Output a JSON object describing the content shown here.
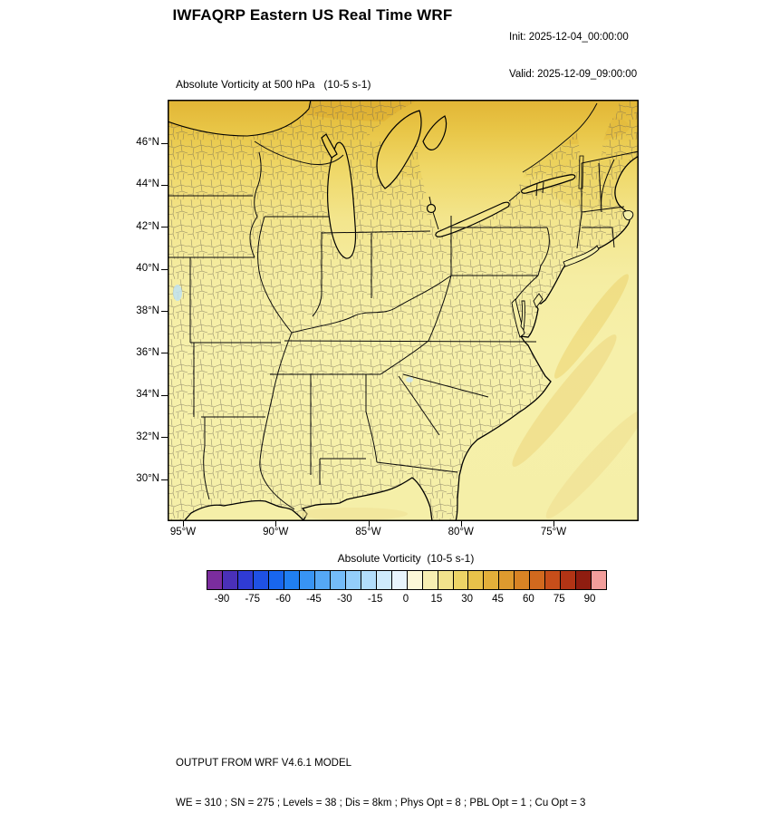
{
  "header": {
    "title": "IWFAQRP Eastern US Real Time WRF",
    "init": "Init: 2025-12-04_00:00:00",
    "valid": "Valid: 2025-12-09_09:00:00"
  },
  "plot": {
    "subtitle": "Absolute Vorticity at 500 hPa   (10-5 s-1)",
    "y_ticks": [
      "46°N",
      "44°N",
      "42°N",
      "40°N",
      "38°N",
      "36°N",
      "34°N",
      "32°N",
      "30°N"
    ],
    "x_ticks": [
      "95°W",
      "90°W",
      "85°W",
      "80°W",
      "75°W"
    ]
  },
  "colorbar": {
    "label": "Absolute Vorticity  (10-5 s-1)",
    "tick_labels": [
      "-90",
      "-75",
      "-60",
      "-45",
      "-30",
      "-15",
      "0",
      "15",
      "30",
      "45",
      "60",
      "75",
      "90"
    ],
    "colors": [
      "#7B2D9E",
      "#4A30B8",
      "#2F3BD4",
      "#1F51E4",
      "#1866EE",
      "#207FF2",
      "#3894F4",
      "#55A8F6",
      "#74BCF8",
      "#93CEFA",
      "#B2DEFB",
      "#CFEBFC",
      "#E8F5FD",
      "#FCF8D8",
      "#F7EFB2",
      "#F2E38C",
      "#EDD466",
      "#E8C24A",
      "#E3AF3A",
      "#DE9A2E",
      "#D88324",
      "#D1691E",
      "#C74E1A",
      "#B23415",
      "#8F1D10",
      "#F29E9B"
    ]
  },
  "footer": {
    "line1": "OUTPUT FROM WRF V4.6.1 MODEL",
    "line2": "WE = 310 ; SN = 275 ; Levels = 38 ; Dis = 8km ; Phys Opt = 8 ; PBL Opt = 1 ; Cu Opt = 3"
  },
  "chart_data": {
    "type": "heatmap",
    "title": "Absolute Vorticity at 500 hPa (10-5 s-1)",
    "x_ticks": [
      "95°W",
      "90°W",
      "85°W",
      "80°W",
      "75°W"
    ],
    "y_ticks": [
      "46°N",
      "44°N",
      "42°N",
      "40°N",
      "38°N",
      "36°N",
      "34°N",
      "32°N",
      "30°N"
    ],
    "colorbar_label": "Absolute Vorticity  (10-5 s-1)",
    "colorbar_ticks": [
      -90,
      -75,
      -60,
      -45,
      -30,
      -15,
      0,
      15,
      30,
      45,
      60,
      75,
      90
    ],
    "colorbar_step": 7.5,
    "value_range_shown": [
      0,
      30
    ],
    "field_summary": "Absolute vorticity mostly 5-15 (pale yellow) over the central and southern Eastern US, increasing to 15-30 (gold) across the Great Lakes and the northern edge of the domain, with narrow enhanced yellow-orange bands over the western Atlantic and smooth low values over the Gulf of Mexico."
  }
}
